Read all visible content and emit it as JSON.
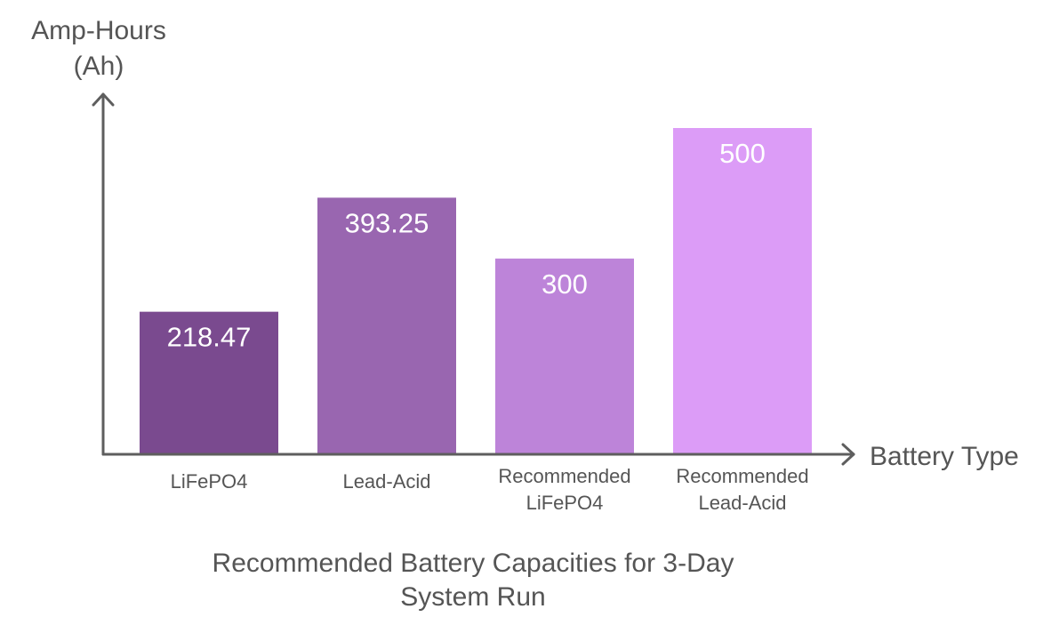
{
  "chart_data": {
    "type": "bar",
    "title_lines": [
      "Recommended Battery Capacities for 3-Day",
      "System Run"
    ],
    "ylabel_lines": [
      "Amp-Hours",
      "(Ah)"
    ],
    "xlabel": "Battery Type",
    "categories": [
      [
        "LiFePO4"
      ],
      [
        "Lead-Acid"
      ],
      [
        "Recommended",
        "LiFePO4"
      ],
      [
        "Recommended",
        "Lead-Acid"
      ]
    ],
    "values": [
      218.47,
      393.25,
      300,
      500
    ],
    "value_labels": [
      "218.47",
      "393.25",
      "300",
      "500"
    ],
    "colors": [
      "#7a4a8f",
      "#9966b0",
      "#bd84d9",
      "#dc9cf7"
    ],
    "ylim": [
      0,
      500
    ],
    "grid": false,
    "legend": "none"
  }
}
